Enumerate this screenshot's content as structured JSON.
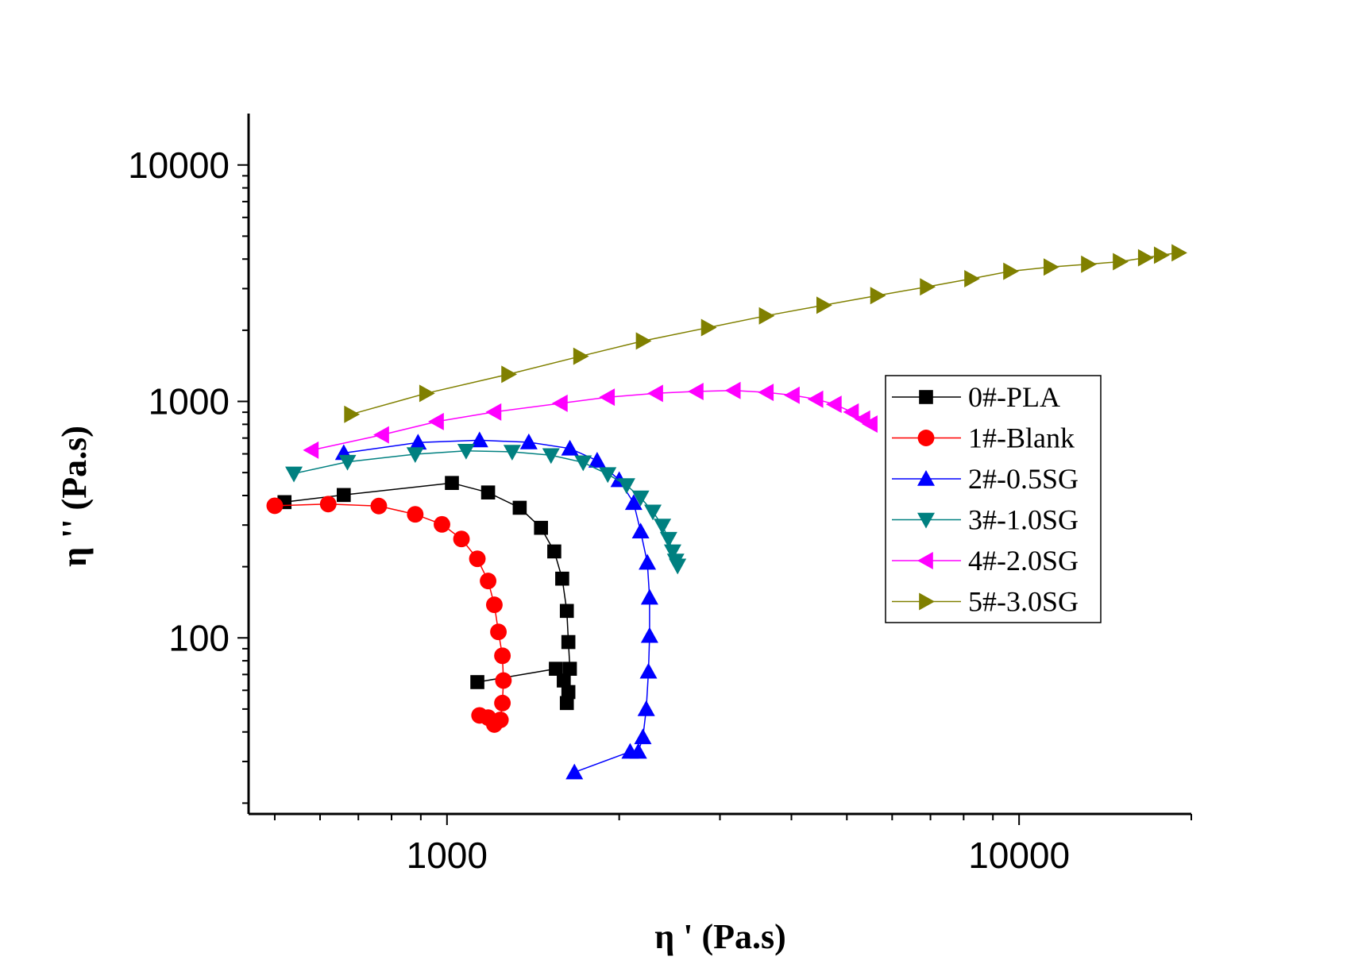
{
  "chart_data": {
    "type": "scatter",
    "xlabel": "η ' (Pa.s)",
    "ylabel": "η '' (Pa.s)",
    "xscale": "log",
    "yscale": "log",
    "xlim": [
      450,
      20000
    ],
    "ylim": [
      18,
      16500
    ],
    "x_ticks": [
      1000,
      10000
    ],
    "x_tick_labels": [
      "1000",
      "10000"
    ],
    "y_ticks": [
      100,
      1000,
      10000
    ],
    "y_tick_labels": [
      "100",
      "1000",
      "10000"
    ],
    "legend_position": "right",
    "series": [
      {
        "name": "0#-PLA",
        "color": "#000000",
        "marker": "square",
        "points": [
          [
            520,
            375
          ],
          [
            660,
            402
          ],
          [
            1020,
            452
          ],
          [
            1180,
            412
          ],
          [
            1340,
            355
          ],
          [
            1460,
            292
          ],
          [
            1540,
            232
          ],
          [
            1590,
            178
          ],
          [
            1620,
            130
          ],
          [
            1630,
            96
          ],
          [
            1640,
            74
          ],
          [
            1630,
            59
          ],
          [
            1620,
            53
          ],
          [
            1600,
            66
          ],
          [
            1550,
            74
          ],
          [
            1130,
            65
          ]
        ]
      },
      {
        "name": "1#-Blank",
        "color": "#ff0000",
        "marker": "circle",
        "points": [
          [
            500,
            362
          ],
          [
            620,
            368
          ],
          [
            760,
            361
          ],
          [
            880,
            333
          ],
          [
            980,
            302
          ],
          [
            1060,
            262
          ],
          [
            1130,
            216
          ],
          [
            1180,
            174
          ],
          [
            1210,
            138
          ],
          [
            1230,
            106
          ],
          [
            1250,
            84
          ],
          [
            1255,
            66
          ],
          [
            1250,
            53
          ],
          [
            1240,
            45
          ],
          [
            1210,
            43
          ],
          [
            1180,
            46
          ],
          [
            1140,
            47
          ]
        ]
      },
      {
        "name": "2#-0.5SG",
        "color": "#0000ff",
        "marker": "triangle-up",
        "points": [
          [
            660,
            605
          ],
          [
            890,
            670
          ],
          [
            1140,
            685
          ],
          [
            1390,
            672
          ],
          [
            1640,
            632
          ],
          [
            1830,
            562
          ],
          [
            2000,
            465
          ],
          [
            2120,
            372
          ],
          [
            2180,
            282
          ],
          [
            2240,
            208
          ],
          [
            2260,
            148
          ],
          [
            2260,
            102
          ],
          [
            2250,
            72
          ],
          [
            2230,
            50
          ],
          [
            2200,
            38
          ],
          [
            2160,
            33
          ],
          [
            2090,
            33
          ],
          [
            1670,
            27
          ]
        ]
      },
      {
        "name": "3#-1.0SG",
        "color": "#008080",
        "marker": "triangle-down",
        "points": [
          [
            540,
            495
          ],
          [
            670,
            555
          ],
          [
            880,
            598
          ],
          [
            1080,
            618
          ],
          [
            1300,
            612
          ],
          [
            1520,
            592
          ],
          [
            1730,
            552
          ],
          [
            1910,
            492
          ],
          [
            2060,
            442
          ],
          [
            2180,
            392
          ],
          [
            2290,
            342
          ],
          [
            2380,
            298
          ],
          [
            2440,
            262
          ],
          [
            2480,
            232
          ],
          [
            2510,
            212
          ],
          [
            2530,
            202
          ]
        ]
      },
      {
        "name": "4#-2.0SG",
        "color": "#ff00ff",
        "marker": "triangle-left",
        "points": [
          [
            580,
            622
          ],
          [
            770,
            722
          ],
          [
            960,
            822
          ],
          [
            1210,
            902
          ],
          [
            1580,
            982
          ],
          [
            1910,
            1042
          ],
          [
            2320,
            1082
          ],
          [
            2730,
            1102
          ],
          [
            3170,
            1112
          ],
          [
            3620,
            1092
          ],
          [
            4020,
            1062
          ],
          [
            4420,
            1022
          ],
          [
            4760,
            972
          ],
          [
            5100,
            902
          ],
          [
            5340,
            842
          ],
          [
            5500,
            802
          ]
        ]
      },
      {
        "name": "5#-3.0SG",
        "color": "#808000",
        "marker": "triangle-right",
        "points": [
          [
            680,
            882
          ],
          [
            920,
            1082
          ],
          [
            1280,
            1302
          ],
          [
            1710,
            1552
          ],
          [
            2200,
            1802
          ],
          [
            2860,
            2052
          ],
          [
            3610,
            2302
          ],
          [
            4550,
            2552
          ],
          [
            5650,
            2802
          ],
          [
            6900,
            3052
          ],
          [
            8250,
            3302
          ],
          [
            9650,
            3552
          ],
          [
            11350,
            3702
          ],
          [
            13200,
            3802
          ],
          [
            15000,
            3902
          ],
          [
            16600,
            4052
          ],
          [
            17700,
            4152
          ],
          [
            19000,
            4252
          ]
        ]
      }
    ]
  }
}
